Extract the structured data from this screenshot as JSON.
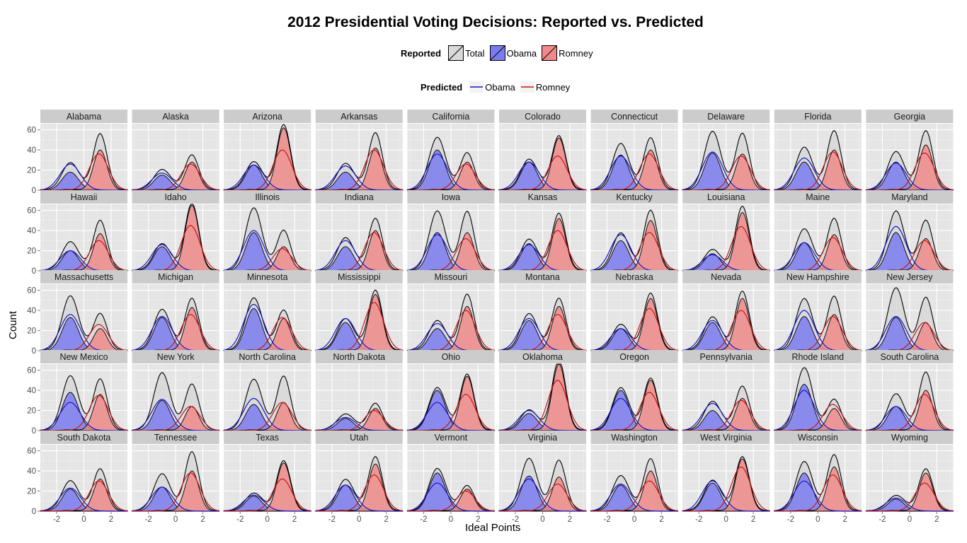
{
  "chart_data": {
    "type": "area",
    "title": "2012 Presidential Voting Decisions: Reported vs. Predicted",
    "xlabel": "Ideal Points",
    "ylabel": "Count",
    "xlim": [
      -3.2,
      3.2
    ],
    "ylim": [
      0,
      66
    ],
    "x_ticks": [
      "-2",
      "0",
      "2"
    ],
    "y_ticks": [
      "0",
      "20",
      "40",
      "60"
    ],
    "grid": true,
    "legend_reported": {
      "title": "Reported",
      "items": [
        {
          "label": "Total",
          "fill": "#d9d9d9"
        },
        {
          "label": "Obama",
          "fill": "#7b7bf0"
        },
        {
          "label": "Romney",
          "fill": "#f08a8a"
        }
      ]
    },
    "legend_predicted": {
      "title": "Predicted",
      "items": [
        {
          "label": "Obama",
          "color": "#1515cc"
        },
        {
          "label": "Romney",
          "color": "#cc1515"
        }
      ]
    },
    "colors": {
      "panel_bg": "#e5e5e5",
      "strip_bg": "#cccccc",
      "total_fill": "#d9d9d9",
      "obama_fill": "#7b7bf0",
      "romney_fill": "#f08a8a",
      "obama_line": "#1515cc",
      "romney_line": "#cc1515"
    },
    "states": [
      {
        "name": "Alabama",
        "obama_peak": 18,
        "romney_peak": 40,
        "total_peak": 54,
        "pred_obama_peak": 26,
        "pred_romney_peak": 36
      },
      {
        "name": "Alaska",
        "obama_peak": 15,
        "romney_peak": 28,
        "total_peak": 33,
        "pred_obama_peak": 17,
        "pred_romney_peak": 26
      },
      {
        "name": "Arizona",
        "obama_peak": 25,
        "romney_peak": 62,
        "total_peak": 63,
        "pred_obama_peak": 25,
        "pred_romney_peak": 40
      },
      {
        "name": "Arkansas",
        "obama_peak": 18,
        "romney_peak": 42,
        "total_peak": 55,
        "pred_obama_peak": 24,
        "pred_romney_peak": 40
      },
      {
        "name": "California",
        "obama_peak": 40,
        "romney_peak": 28,
        "total_peak": 50,
        "pred_obama_peak": 36,
        "pred_romney_peak": 26
      },
      {
        "name": "Colorado",
        "obama_peak": 28,
        "romney_peak": 52,
        "total_peak": 52,
        "pred_obama_peak": 28,
        "pred_romney_peak": 34
      },
      {
        "name": "Connecticut",
        "obama_peak": 35,
        "romney_peak": 40,
        "total_peak": 50,
        "pred_obama_peak": 34,
        "pred_romney_peak": 36
      },
      {
        "name": "Delaware",
        "obama_peak": 37,
        "romney_peak": 36,
        "total_peak": 56,
        "pred_obama_peak": 38,
        "pred_romney_peak": 34
      },
      {
        "name": "Florida",
        "obama_peak": 28,
        "romney_peak": 40,
        "total_peak": 57,
        "pred_obama_peak": 32,
        "pred_romney_peak": 38
      },
      {
        "name": "Georgia",
        "obama_peak": 28,
        "romney_peak": 45,
        "total_peak": 57,
        "pred_obama_peak": 27,
        "pred_romney_peak": 37
      },
      {
        "name": "Hawaii",
        "obama_peak": 20,
        "romney_peak": 37,
        "total_peak": 48,
        "pred_obama_peak": 20,
        "pred_romney_peak": 30
      },
      {
        "name": "Idaho",
        "obama_peak": 24,
        "romney_peak": 65,
        "total_peak": 65,
        "pred_obama_peak": 26,
        "pred_romney_peak": 45
      },
      {
        "name": "Illinois",
        "obama_peak": 38,
        "romney_peak": 24,
        "total_peak": 60,
        "pred_obama_peak": 40,
        "pred_romney_peak": 22
      },
      {
        "name": "Indiana",
        "obama_peak": 24,
        "romney_peak": 40,
        "total_peak": 50,
        "pred_obama_peak": 30,
        "pred_romney_peak": 38
      },
      {
        "name": "Iowa",
        "obama_peak": 38,
        "romney_peak": 38,
        "total_peak": 57,
        "pred_obama_peak": 36,
        "pred_romney_peak": 32
      },
      {
        "name": "Kansas",
        "obama_peak": 27,
        "romney_peak": 52,
        "total_peak": 55,
        "pred_obama_peak": 26,
        "pred_romney_peak": 40
      },
      {
        "name": "Kentucky",
        "obama_peak": 30,
        "romney_peak": 50,
        "total_peak": 58,
        "pred_obama_peak": 36,
        "pred_romney_peak": 38
      },
      {
        "name": "Louisiana",
        "obama_peak": 17,
        "romney_peak": 58,
        "total_peak": 62,
        "pred_obama_peak": 16,
        "pred_romney_peak": 44
      },
      {
        "name": "Maine",
        "obama_peak": 28,
        "romney_peak": 36,
        "total_peak": 50,
        "pred_obama_peak": 28,
        "pred_romney_peak": 33
      },
      {
        "name": "Maryland",
        "obama_peak": 38,
        "romney_peak": 32,
        "total_peak": 57,
        "pred_obama_peak": 44,
        "pred_romney_peak": 30
      },
      {
        "name": "Massachusetts",
        "obama_peak": 33,
        "romney_peak": 22,
        "total_peak": 52,
        "pred_obama_peak": 36,
        "pred_romney_peak": 26
      },
      {
        "name": "Michigan",
        "obama_peak": 33,
        "romney_peak": 43,
        "total_peak": 50,
        "pred_obama_peak": 34,
        "pred_romney_peak": 36
      },
      {
        "name": "Minnesota",
        "obama_peak": 42,
        "romney_peak": 32,
        "total_peak": 50,
        "pred_obama_peak": 46,
        "pred_romney_peak": 33
      },
      {
        "name": "Mississippi",
        "obama_peak": 28,
        "romney_peak": 56,
        "total_peak": 58,
        "pred_obama_peak": 32,
        "pred_romney_peak": 48
      },
      {
        "name": "Missouri",
        "obama_peak": 22,
        "romney_peak": 44,
        "total_peak": 54,
        "pred_obama_peak": 27,
        "pred_romney_peak": 40
      },
      {
        "name": "Montana",
        "obama_peak": 30,
        "romney_peak": 44,
        "total_peak": 50,
        "pred_obama_peak": 32,
        "pred_romney_peak": 36
      },
      {
        "name": "Nebraska",
        "obama_peak": 22,
        "romney_peak": 52,
        "total_peak": 55,
        "pred_obama_peak": 22,
        "pred_romney_peak": 42
      },
      {
        "name": "Nevada",
        "obama_peak": 28,
        "romney_peak": 52,
        "total_peak": 57,
        "pred_obama_peak": 30,
        "pred_romney_peak": 40
      },
      {
        "name": "New Hampshire",
        "obama_peak": 34,
        "romney_peak": 36,
        "total_peak": 52,
        "pred_obama_peak": 40,
        "pred_romney_peak": 34
      },
      {
        "name": "New Jersey",
        "obama_peak": 33,
        "romney_peak": 28,
        "total_peak": 60,
        "pred_obama_peak": 34,
        "pred_romney_peak": 28
      },
      {
        "name": "New Mexico",
        "obama_peak": 38,
        "romney_peak": 36,
        "total_peak": 52,
        "pred_obama_peak": 28,
        "pred_romney_peak": 35
      },
      {
        "name": "New York",
        "obama_peak": 30,
        "romney_peak": 24,
        "total_peak": 55,
        "pred_obama_peak": 31,
        "pred_romney_peak": 24
      },
      {
        "name": "North Carolina",
        "obama_peak": 26,
        "romney_peak": 28,
        "total_peak": 52,
        "pred_obama_peak": 32,
        "pred_romney_peak": 28
      },
      {
        "name": "North Dakota",
        "obama_peak": 12,
        "romney_peak": 22,
        "total_peak": 25,
        "pred_obama_peak": 13,
        "pred_romney_peak": 20
      },
      {
        "name": "Ohio",
        "obama_peak": 40,
        "romney_peak": 54,
        "total_peak": 54,
        "pred_obama_peak": 28,
        "pred_romney_peak": 36
      },
      {
        "name": "Oklahoma",
        "obama_peak": 17,
        "romney_peak": 66,
        "total_peak": 68,
        "pred_obama_peak": 20,
        "pred_romney_peak": 50
      },
      {
        "name": "Oregon",
        "obama_peak": 40,
        "romney_peak": 50,
        "total_peak": 50,
        "pred_obama_peak": 32,
        "pred_romney_peak": 38
      },
      {
        "name": "Pennsylvania",
        "obama_peak": 20,
        "romney_peak": 32,
        "total_peak": 42,
        "pred_obama_peak": 27,
        "pred_romney_peak": 30
      },
      {
        "name": "Rhode Island",
        "obama_peak": 46,
        "romney_peak": 22,
        "total_peak": 60,
        "pred_obama_peak": 40,
        "pred_romney_peak": 26
      },
      {
        "name": "South Carolina",
        "obama_peak": 24,
        "romney_peak": 40,
        "total_peak": 56,
        "pred_obama_peak": 24,
        "pred_romney_peak": 36
      },
      {
        "name": "South Dakota",
        "obama_peak": 22,
        "romney_peak": 32,
        "total_peak": 40,
        "pred_obama_peak": 23,
        "pred_romney_peak": 30
      },
      {
        "name": "Tennessee",
        "obama_peak": 24,
        "romney_peak": 40,
        "total_peak": 57,
        "pred_obama_peak": 24,
        "pred_romney_peak": 38
      },
      {
        "name": "Texas",
        "obama_peak": 15,
        "romney_peak": 48,
        "total_peak": 48,
        "pred_obama_peak": 16,
        "pred_romney_peak": 32
      },
      {
        "name": "Utah",
        "obama_peak": 26,
        "romney_peak": 47,
        "total_peak": 52,
        "pred_obama_peak": 26,
        "pred_romney_peak": 36
      },
      {
        "name": "Vermont",
        "obama_peak": 38,
        "romney_peak": 22,
        "total_peak": 40,
        "pred_obama_peak": 28,
        "pred_romney_peak": 20
      },
      {
        "name": "Virginia",
        "obama_peak": 35,
        "romney_peak": 34,
        "total_peak": 50,
        "pred_obama_peak": 32,
        "pred_romney_peak": 27
      },
      {
        "name": "Washington",
        "obama_peak": 26,
        "romney_peak": 40,
        "total_peak": 50,
        "pred_obama_peak": 27,
        "pred_romney_peak": 30
      },
      {
        "name": "West Virginia",
        "obama_peak": 28,
        "romney_peak": 52,
        "total_peak": 52,
        "pred_obama_peak": 30,
        "pred_romney_peak": 44
      },
      {
        "name": "Wisconsin",
        "obama_peak": 38,
        "romney_peak": 44,
        "total_peak": 54,
        "pred_obama_peak": 30,
        "pred_romney_peak": 36
      },
      {
        "name": "Wyoming",
        "obama_peak": 12,
        "romney_peak": 38,
        "total_peak": 40,
        "pred_obama_peak": 13,
        "pred_romney_peak": 28
      }
    ]
  }
}
